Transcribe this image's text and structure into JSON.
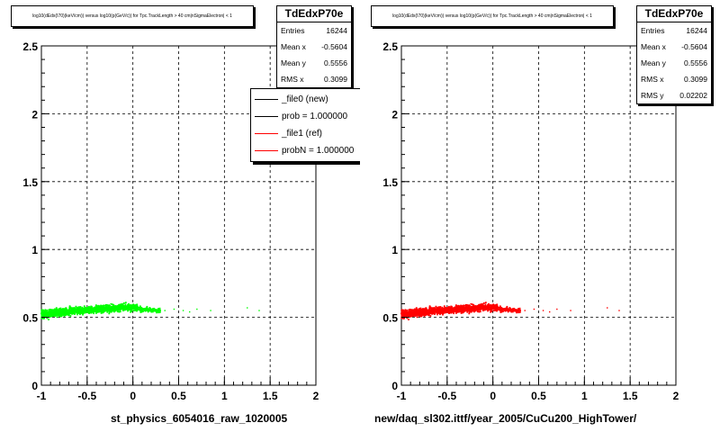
{
  "pads": [
    {
      "title": "log10(dEdx(I70)(keV/cm)) versus log10(p(GeV/c)) for Tpc.TrackLength > 40 cm|nSigmaElectron| < 1",
      "stats": {
        "name": "TdEdxP70e",
        "rows": [
          {
            "label": "Entries",
            "value": "16244"
          },
          {
            "label": "Mean x",
            "value": "-0.5604"
          },
          {
            "label": "Mean y",
            "value": "0.5556"
          },
          {
            "label": "RMS x",
            "value": "0.3099"
          }
        ]
      },
      "legend": [
        {
          "label": "_file0 (new)",
          "color": "#000000"
        },
        {
          "label": "prob = 1.000000",
          "color": "#000000"
        },
        {
          "label": "_file1 (ref)",
          "color": "#ff0000"
        },
        {
          "label": "probN = 1.000000",
          "color": "#ff0000"
        }
      ],
      "xtitle": "st_physics_6054016_raw_1020005",
      "marker_color": "#00ff00"
    },
    {
      "title": "log10(dEdx(I70)(keV/cm)) versus log10(p(GeV/c)) for Tpc.TrackLength > 40 cm|nSigmaElectron| < 1",
      "stats": {
        "name": "TdEdxP70e",
        "rows": [
          {
            "label": "Entries",
            "value": "16244"
          },
          {
            "label": "Mean x",
            "value": "-0.5604"
          },
          {
            "label": "Mean y",
            "value": "0.5556"
          },
          {
            "label": "RMS x",
            "value": "0.3099"
          },
          {
            "label": "RMS y",
            "value": "0.02202"
          }
        ]
      },
      "xtitle": "new/daq_sl302.ittf/year_2005/CuCu200_HighTower/",
      "marker_color": "#ff0000"
    }
  ],
  "chart_data": [
    {
      "type": "scatter",
      "title": "log10(dEdx(I70)(keV/cm)) versus log10(p(GeV/c)) for Tpc.TrackLength > 40 cm|nSigmaElectron| < 1",
      "xlabel": "st_physics_6054016_raw_1020005",
      "ylabel": "",
      "xlim": [
        -1,
        2
      ],
      "ylim": [
        0,
        2.5
      ],
      "x_ticks": [
        "-1",
        "-0.5",
        "0",
        "0.5",
        "1",
        "1.5",
        "2"
      ],
      "y_ticks": [
        "0",
        "0.5",
        "1",
        "1.5",
        "2",
        "2.5"
      ],
      "grid": true,
      "legend_position": "top-right",
      "series": [
        {
          "name": "_file0 (new)",
          "color": "#00ff00",
          "band": {
            "x": [
              -1.0,
              -0.75,
              -0.5,
              -0.25,
              0.0,
              0.1,
              0.3
            ],
            "y_center": [
              0.52,
              0.54,
              0.555,
              0.565,
              0.575,
              0.56,
              0.55
            ],
            "y_halfwidth": [
              0.05,
              0.045,
              0.04,
              0.04,
              0.04,
              0.03,
              0.02
            ]
          },
          "sparse_points": [
            [
              0.35,
              0.55
            ],
            [
              0.45,
              0.56
            ],
            [
              0.55,
              0.55
            ],
            [
              0.62,
              0.54
            ],
            [
              0.7,
              0.56
            ],
            [
              0.85,
              0.55
            ],
            [
              1.25,
              0.57
            ],
            [
              1.38,
              0.55
            ]
          ]
        }
      ]
    },
    {
      "type": "scatter",
      "title": "log10(dEdx(I70)(keV/cm)) versus log10(p(GeV/c)) for Tpc.TrackLength > 40 cm|nSigmaElectron| < 1",
      "xlabel": "new/daq_sl302.ittf/year_2005/CuCu200_HighTower/",
      "ylabel": "",
      "xlim": [
        -1,
        2
      ],
      "ylim": [
        0,
        2.5
      ],
      "x_ticks": [
        "-1",
        "-0.5",
        "0",
        "0.5",
        "1",
        "1.5",
        "2"
      ],
      "y_ticks": [
        "0",
        "0.5",
        "1",
        "1.5",
        "2",
        "2.5"
      ],
      "grid": true,
      "series": [
        {
          "color": "#ff0000",
          "band": {
            "x": [
              -1.0,
              -0.75,
              -0.5,
              -0.25,
              0.0,
              0.1,
              0.3
            ],
            "y_center": [
              0.52,
              0.54,
              0.555,
              0.565,
              0.575,
              0.56,
              0.55
            ],
            "y_halfwidth": [
              0.05,
              0.045,
              0.04,
              0.04,
              0.04,
              0.03,
              0.02
            ]
          },
          "sparse_points": [
            [
              0.35,
              0.55
            ],
            [
              0.45,
              0.56
            ],
            [
              0.55,
              0.55
            ],
            [
              0.62,
              0.54
            ],
            [
              0.7,
              0.56
            ],
            [
              0.85,
              0.55
            ],
            [
              1.25,
              0.57
            ],
            [
              1.38,
              0.55
            ]
          ]
        }
      ]
    }
  ]
}
